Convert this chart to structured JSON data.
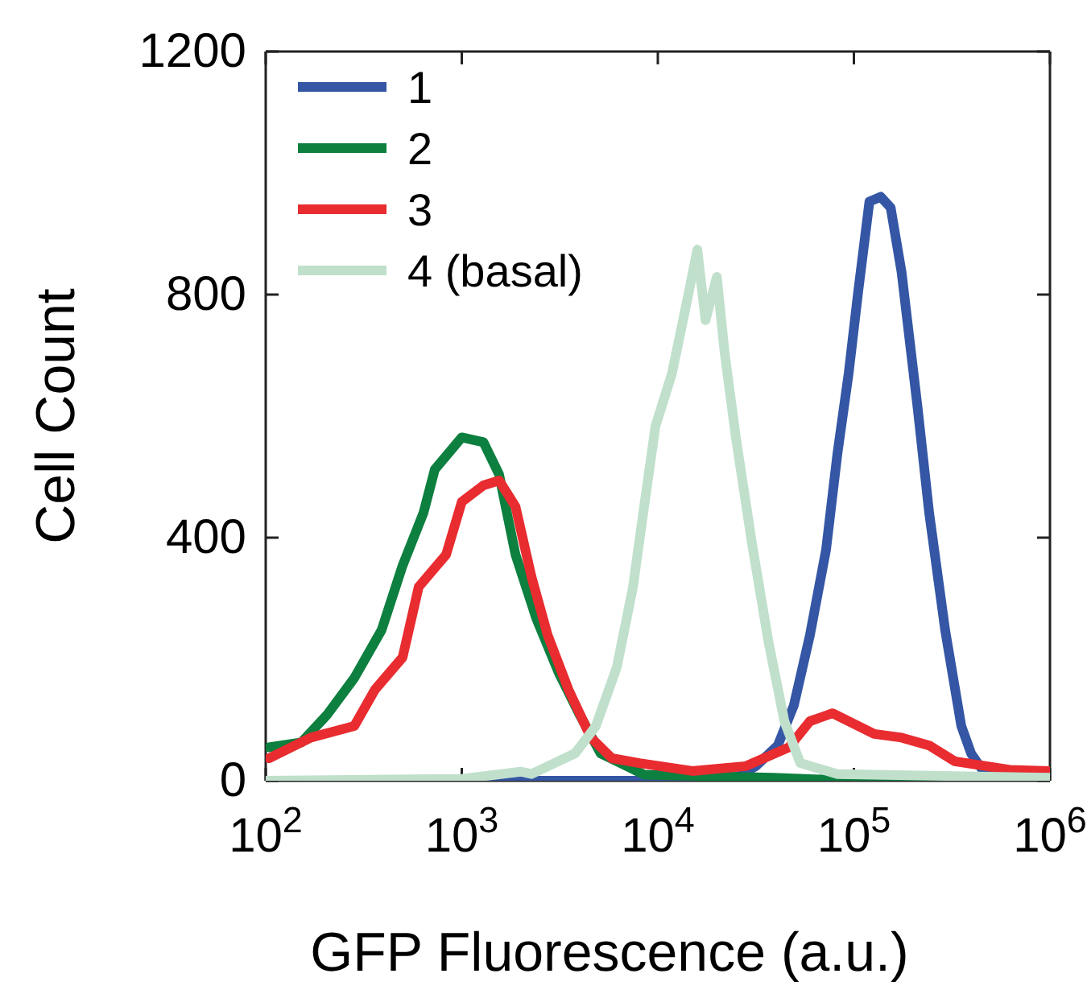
{
  "chart_data": {
    "type": "line",
    "xlabel": "GFP Fluorescence (a.u.)",
    "ylabel": "Cell Count",
    "log": "x",
    "xlim": [
      100,
      1000000
    ],
    "xticks": [
      {
        "value": 100,
        "label": "10$^{2}$"
      },
      {
        "value": 1000,
        "label": "10$^{3}$"
      },
      {
        "value": 10000,
        "label": "10$^{4}$"
      },
      {
        "value": 100000,
        "label": "10$^{5}$"
      },
      {
        "value": 1000000,
        "label": "10$^{6}$"
      }
    ],
    "ylim": [
      0,
      1200
    ],
    "yticks": [
      0,
      400,
      800,
      1200
    ],
    "grid": false,
    "legend": "top left",
    "line_style": "solid",
    "marker": "none",
    "series": [
      {
        "name": "1",
        "color": "#3456a4",
        "x": [
          100,
          10000,
          25000,
          31600,
          40900,
          49400,
          59700,
          72100,
          82400,
          94000,
          105000,
          120000,
          137000,
          154000,
          175000,
          212000,
          242000,
          292000,
          353000,
          396000,
          452000,
          550000,
          1000000
        ],
        "values": [
          0,
          0,
          5,
          24,
          58,
          124,
          240,
          380,
          538,
          670,
          803,
          953,
          961,
          943,
          837,
          610,
          441,
          248,
          90,
          45,
          18,
          0,
          0
        ]
      },
      {
        "name": "2",
        "color": "#0d7f3f",
        "x": [
          104,
          152,
          205,
          283,
          390,
          499,
          638,
          728,
          1000,
          1290,
          1550,
          1880,
          2400,
          3130,
          4000,
          5110,
          8500,
          38600,
          100000,
          1000000
        ],
        "values": [
          55,
          63,
          108,
          169,
          248,
          354,
          441,
          512,
          565,
          557,
          504,
          372,
          267,
          177,
          108,
          45,
          10,
          5,
          0,
          0
        ]
      },
      {
        "name": "3",
        "color": "#e82c30",
        "x": [
          104,
          170,
          283,
          361,
          499,
          603,
          832,
          1000,
          1290,
          1550,
          1880,
          2270,
          2740,
          3500,
          4560,
          5830,
          8050,
          15000,
          28000,
          46600,
          59700,
          77800,
          127000,
          175000,
          242000,
          327000,
          624000,
          1000000
        ],
        "values": [
          37,
          71,
          90,
          150,
          203,
          319,
          372,
          459,
          486,
          494,
          451,
          335,
          240,
          150,
          71,
          37,
          29,
          16,
          24,
          55,
          98,
          111,
          77,
          71,
          58,
          32,
          18,
          16
        ]
      },
      {
        "name": "4 (basal)",
        "color": "#c0e0cc",
        "x": [
          100,
          1000,
          2000,
          2270,
          3780,
          4830,
          6180,
          7470,
          8510,
          9720,
          11800,
          14200,
          15900,
          17500,
          20000,
          21900,
          25000,
          30300,
          36600,
          44200,
          53300,
          82400,
          1000000
        ],
        "values": [
          0,
          3,
          15,
          11,
          45,
          90,
          187,
          319,
          451,
          583,
          670,
          795,
          874,
          758,
          829,
          705,
          565,
          388,
          230,
          98,
          29,
          11,
          5
        ]
      }
    ]
  }
}
